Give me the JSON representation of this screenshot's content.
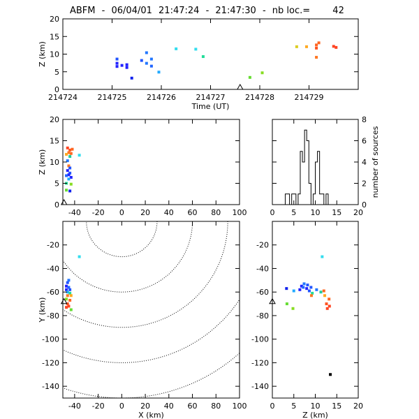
{
  "title": {
    "prefix": "ABFM",
    "date": "06/04/01",
    "time_start": "21:47:24",
    "time_end": "21:47:30",
    "nb_label": "nb loc.=",
    "nb_value": "42"
  },
  "chart_data": [
    {
      "type": "scatter",
      "panel": "time-height",
      "xlabel": "Time (UT)",
      "ylabel": "Z (km)",
      "xlim": [
        214724,
        214730
      ],
      "ylim": [
        0,
        20
      ],
      "xticks": [
        214724,
        214725,
        214726,
        214727,
        214728,
        214729
      ],
      "yticks": [
        0,
        5,
        10,
        15,
        20
      ],
      "x_tick_labels": [
        "214724",
        "214725",
        "214726",
        "214727",
        "214728",
        "214729"
      ],
      "y_tick_labels": [
        "0",
        "5",
        "10",
        "15",
        "20"
      ],
      "marker_label": "station",
      "marker_x": 214727.6,
      "points": [
        {
          "x": 214725.1,
          "y": 6.5,
          "c": "#2222ff"
        },
        {
          "x": 214725.1,
          "y": 7.4,
          "c": "#2222ff"
        },
        {
          "x": 214725.2,
          "y": 6.8,
          "c": "#2222ff"
        },
        {
          "x": 214725.3,
          "y": 7.0,
          "c": "#2222ff"
        },
        {
          "x": 214725.3,
          "y": 6.2,
          "c": "#2222ff"
        },
        {
          "x": 214725.1,
          "y": 8.6,
          "c": "#2255ff"
        },
        {
          "x": 214725.4,
          "y": 3.2,
          "c": "#1122ee"
        },
        {
          "x": 214725.6,
          "y": 8.2,
          "c": "#2255ff"
        },
        {
          "x": 214725.7,
          "y": 7.4,
          "c": "#2277ff"
        },
        {
          "x": 214725.8,
          "y": 8.6,
          "c": "#2277ff"
        },
        {
          "x": 214725.8,
          "y": 6.6,
          "c": "#2266ff"
        },
        {
          "x": 214725.7,
          "y": 10.4,
          "c": "#2277ff"
        },
        {
          "x": 214725.95,
          "y": 4.9,
          "c": "#22aaff"
        },
        {
          "x": 214726.3,
          "y": 11.5,
          "c": "#33ddee"
        },
        {
          "x": 214726.7,
          "y": 11.4,
          "c": "#33ddee"
        },
        {
          "x": 214726.85,
          "y": 9.3,
          "c": "#22dd99"
        },
        {
          "x": 214727.8,
          "y": 3.4,
          "c": "#66dd33"
        },
        {
          "x": 214728.05,
          "y": 4.7,
          "c": "#88dd22"
        },
        {
          "x": 214728.75,
          "y": 12.1,
          "c": "#ddcc22"
        },
        {
          "x": 214728.95,
          "y": 12.1,
          "c": "#ffaa22"
        },
        {
          "x": 214729.15,
          "y": 12.6,
          "c": "#ff6622"
        },
        {
          "x": 214729.2,
          "y": 13.2,
          "c": "#ff6622"
        },
        {
          "x": 214729.15,
          "y": 11.7,
          "c": "#ff5522"
        },
        {
          "x": 214729.15,
          "y": 9.1,
          "c": "#ff7722"
        },
        {
          "x": 214729.5,
          "y": 12.2,
          "c": "#ff4422"
        },
        {
          "x": 214729.55,
          "y": 11.9,
          "c": "#ff4422"
        }
      ]
    },
    {
      "type": "scatter",
      "panel": "x-height",
      "xlabel": "",
      "ylabel": "Z (km)",
      "xlim": [
        -50,
        100
      ],
      "ylim": [
        0,
        20
      ],
      "xticks": [
        -40,
        -20,
        0,
        20,
        40,
        60,
        80,
        100
      ],
      "yticks": [
        0,
        5,
        10,
        15,
        20
      ],
      "x_tick_labels": [
        "-40",
        "-20",
        "0",
        "20",
        "40",
        "60",
        "80",
        "100"
      ],
      "y_tick_labels": [
        "0",
        "5",
        "10",
        "15",
        "20"
      ],
      "marker_label": "station",
      "marker_x": -49,
      "points": [
        {
          "x": -46,
          "y": 13.3,
          "c": "#ff4422"
        },
        {
          "x": -44,
          "y": 12.8,
          "c": "#ff5522"
        },
        {
          "x": -42,
          "y": 13.0,
          "c": "#ff6622"
        },
        {
          "x": -45,
          "y": 12.2,
          "c": "#ff7722"
        },
        {
          "x": -47,
          "y": 11.8,
          "c": "#ffaa22"
        },
        {
          "x": -43,
          "y": 12.0,
          "c": "#ff6622"
        },
        {
          "x": -36,
          "y": 11.6,
          "c": "#33ddee"
        },
        {
          "x": -44,
          "y": 11.3,
          "c": "#22cc99"
        },
        {
          "x": -46,
          "y": 10.3,
          "c": "#2277ff"
        },
        {
          "x": -45,
          "y": 9.1,
          "c": "#ff7722"
        },
        {
          "x": -44,
          "y": 8.6,
          "c": "#2255ff"
        },
        {
          "x": -46,
          "y": 8.0,
          "c": "#2222ff"
        },
        {
          "x": -44,
          "y": 7.4,
          "c": "#2255ff"
        },
        {
          "x": -45,
          "y": 7.0,
          "c": "#2222ff"
        },
        {
          "x": -47,
          "y": 6.8,
          "c": "#2266ff"
        },
        {
          "x": -43,
          "y": 6.4,
          "c": "#2222ff"
        },
        {
          "x": -45,
          "y": 6.0,
          "c": "#22aaff"
        },
        {
          "x": -47,
          "y": 5.0,
          "c": "#22dd99"
        },
        {
          "x": -43,
          "y": 4.8,
          "c": "#88dd22"
        },
        {
          "x": -47,
          "y": 3.4,
          "c": "#66dd33"
        },
        {
          "x": -44,
          "y": 3.2,
          "c": "#1122ee"
        }
      ]
    },
    {
      "type": "bar",
      "panel": "height-histogram",
      "xlabel": "",
      "ylabel": "number of sources",
      "xlim": [
        0,
        20
      ],
      "ylim": [
        0,
        8
      ],
      "xticks": [
        0,
        5,
        10,
        15,
        20
      ],
      "yticks": [
        0,
        2,
        4,
        6,
        8
      ],
      "x_tick_labels": [
        "0",
        "5",
        "10",
        "15",
        "20"
      ],
      "y_tick_labels": [
        "0",
        "2",
        "4",
        "6",
        "8"
      ],
      "bin_width": 0.5,
      "bins_start": 3.0,
      "counts": [
        1,
        1,
        0,
        1,
        1,
        0,
        1,
        5,
        4,
        7,
        6,
        2,
        0,
        1,
        4,
        5,
        1,
        1,
        0,
        1
      ]
    },
    {
      "type": "scatter",
      "panel": "plan-view",
      "xlabel": "X (km)",
      "ylabel": "Y (km)",
      "xlim": [
        -50,
        100
      ],
      "ylim": [
        -150,
        0
      ],
      "xticks": [
        -40,
        -20,
        0,
        20,
        40,
        60,
        80,
        100
      ],
      "yticks": [
        -140,
        -120,
        -100,
        -80,
        -60,
        -40,
        -20
      ],
      "x_tick_labels": [
        "-40",
        "-20",
        "0",
        "20",
        "40",
        "60",
        "80",
        "100"
      ],
      "y_tick_labels": [
        "-140",
        "-120",
        "-100",
        "-80",
        "-60",
        "-40",
        "-20"
      ],
      "range_rings_km": [
        30,
        60,
        90,
        120,
        150
      ],
      "ring_center": [
        0,
        0
      ],
      "marker_label": "station",
      "marker_xy": [
        -49,
        -68
      ],
      "points": [
        {
          "x": -36,
          "y": -30,
          "c": "#33ddee"
        },
        {
          "x": -45,
          "y": -50,
          "c": "#2277ff"
        },
        {
          "x": -46,
          "y": -52,
          "c": "#2255ff"
        },
        {
          "x": -47,
          "y": -55,
          "c": "#2222ff"
        },
        {
          "x": -45,
          "y": -56,
          "c": "#2266ff"
        },
        {
          "x": -47,
          "y": -58,
          "c": "#2222ff"
        },
        {
          "x": -44,
          "y": -58,
          "c": "#2255ff"
        },
        {
          "x": -46,
          "y": -60,
          "c": "#22aaff"
        },
        {
          "x": -44,
          "y": -61,
          "c": "#22dd99"
        },
        {
          "x": -43,
          "y": -63,
          "c": "#ffaa22"
        },
        {
          "x": -46,
          "y": -63,
          "c": "#ff7722"
        },
        {
          "x": -47,
          "y": -66,
          "c": "#88dd22"
        },
        {
          "x": -44,
          "y": -67,
          "c": "#ff6622"
        },
        {
          "x": -46,
          "y": -70,
          "c": "#ff5522"
        },
        {
          "x": -45,
          "y": -72,
          "c": "#ff4422"
        },
        {
          "x": -47,
          "y": -73,
          "c": "#ff4422"
        },
        {
          "x": -43,
          "y": -75,
          "c": "#66dd33"
        }
      ]
    },
    {
      "type": "scatter",
      "panel": "height-y",
      "xlabel": "Z (km)",
      "ylabel": "",
      "xlim": [
        0,
        20
      ],
      "ylim": [
        -150,
        0
      ],
      "xticks": [
        0,
        5,
        10,
        15,
        20
      ],
      "yticks": [
        -140,
        -120,
        -100,
        -80,
        -60,
        -40,
        -20
      ],
      "x_tick_labels": [
        "0",
        "5",
        "10",
        "15",
        "20"
      ],
      "y_tick_labels": [
        "-140",
        "-120",
        "-100",
        "-80",
        "-60",
        "-40",
        "-20"
      ],
      "marker_label": "station",
      "marker_xy": [
        0,
        -68
      ],
      "points": [
        {
          "x": 11.6,
          "y": -30,
          "c": "#33ddee"
        },
        {
          "x": 7.4,
          "y": -53,
          "c": "#2277ff"
        },
        {
          "x": 8.2,
          "y": -54,
          "c": "#2255ff"
        },
        {
          "x": 6.8,
          "y": -55,
          "c": "#2222ff"
        },
        {
          "x": 7.2,
          "y": -56,
          "c": "#2266ff"
        },
        {
          "x": 8.0,
          "y": -57,
          "c": "#2222ff"
        },
        {
          "x": 9.0,
          "y": -56,
          "c": "#2255ff"
        },
        {
          "x": 6.4,
          "y": -58,
          "c": "#2222ff"
        },
        {
          "x": 3.3,
          "y": -57,
          "c": "#1122ee"
        },
        {
          "x": 8.6,
          "y": -59,
          "c": "#2255ff"
        },
        {
          "x": 5.0,
          "y": -59,
          "c": "#22aaff"
        },
        {
          "x": 10.3,
          "y": -58,
          "c": "#2277ff"
        },
        {
          "x": 9.3,
          "y": -61,
          "c": "#22dd99"
        },
        {
          "x": 11.3,
          "y": -60,
          "c": "#22cc99"
        },
        {
          "x": 12.0,
          "y": -59,
          "c": "#ff6622"
        },
        {
          "x": 12.2,
          "y": -63,
          "c": "#ffaa22"
        },
        {
          "x": 9.1,
          "y": -63,
          "c": "#ff7722"
        },
        {
          "x": 13.2,
          "y": -66,
          "c": "#ff6622"
        },
        {
          "x": 12.6,
          "y": -70,
          "c": "#ff5522"
        },
        {
          "x": 13.3,
          "y": -72,
          "c": "#ff4422"
        },
        {
          "x": 12.8,
          "y": -74,
          "c": "#ff4422"
        },
        {
          "x": 3.4,
          "y": -70,
          "c": "#66dd33"
        },
        {
          "x": 4.8,
          "y": -74,
          "c": "#88dd22"
        },
        {
          "x": 13.5,
          "y": -130,
          "c": "#000000"
        }
      ]
    }
  ]
}
